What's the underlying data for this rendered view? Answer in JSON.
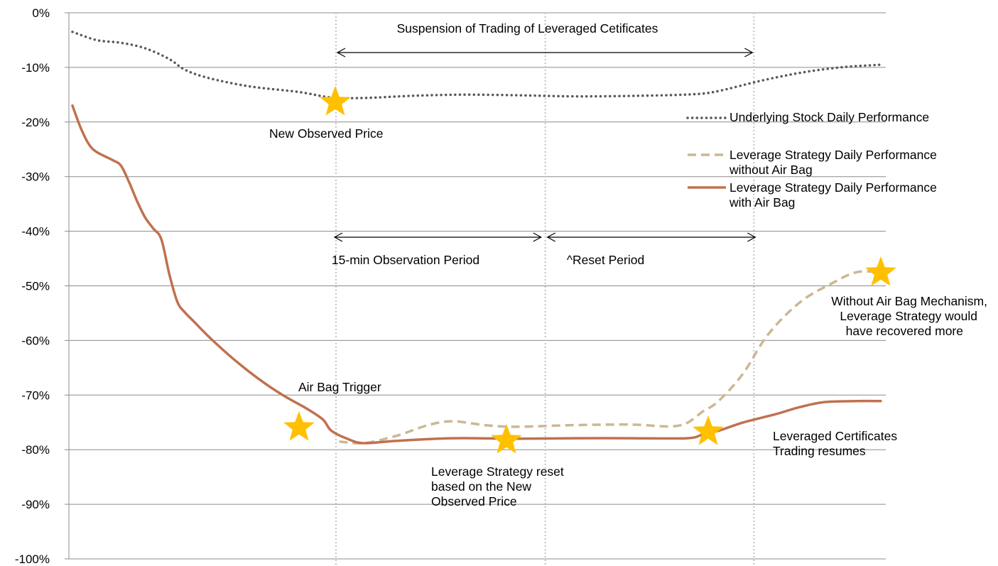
{
  "chart_data": {
    "type": "line",
    "title": "",
    "xlabel": "",
    "ylabel": "",
    "ylim": [
      -100,
      0
    ],
    "ytick_labels": [
      "0%",
      "-10%",
      "-20%",
      "-30%",
      "-40%",
      "-50%",
      "-60%",
      "-70%",
      "-80%",
      "-90%",
      "-100%"
    ],
    "grid": "horizontal",
    "legend_position": "right",
    "series": [
      {
        "name": "Underlying Stock Daily Performance",
        "style": "dotted",
        "color": "#595959",
        "points": [
          [
            0,
            -3.5
          ],
          [
            3,
            -5
          ],
          [
            6,
            -5.5
          ],
          [
            9,
            -6.5
          ],
          [
            12,
            -8.5
          ],
          [
            14,
            -10.5
          ],
          [
            17,
            -12
          ],
          [
            22,
            -13.5
          ],
          [
            28,
            -14.5
          ],
          [
            32,
            -15.5
          ],
          [
            36,
            -15.6
          ],
          [
            42,
            -15.2
          ],
          [
            48,
            -15
          ],
          [
            55,
            -15.1
          ],
          [
            62,
            -15.3
          ],
          [
            70,
            -15.2
          ],
          [
            77,
            -14.9
          ],
          [
            80,
            -14.3
          ],
          [
            85,
            -12.5
          ],
          [
            90,
            -11
          ],
          [
            95,
            -10
          ],
          [
            100,
            -9.5
          ]
        ]
      },
      {
        "name": "Leverage Strategy Daily Performance without Air Bag",
        "style": "dashed",
        "color": "#cbb893",
        "points": [
          [
            33,
            -78.5
          ],
          [
            36,
            -78.8
          ],
          [
            40,
            -77.5
          ],
          [
            44,
            -75.5
          ],
          [
            47,
            -74.8
          ],
          [
            51,
            -75.5
          ],
          [
            55,
            -75.8
          ],
          [
            62,
            -75.5
          ],
          [
            69,
            -75.4
          ],
          [
            75,
            -75.6
          ],
          [
            78,
            -73
          ],
          [
            80,
            -71
          ],
          [
            83,
            -66
          ],
          [
            86,
            -59
          ],
          [
            90,
            -53
          ],
          [
            94,
            -49.5
          ],
          [
            97,
            -47.5
          ],
          [
            100,
            -47.5
          ]
        ]
      },
      {
        "name": "Leverage Strategy Daily Performance with Air Bag",
        "style": "solid",
        "color": "#c0714f",
        "points": [
          [
            0,
            -17
          ],
          [
            1,
            -21
          ],
          [
            2,
            -24
          ],
          [
            3,
            -25.5
          ],
          [
            5,
            -27
          ],
          [
            6,
            -28
          ],
          [
            7,
            -31
          ],
          [
            8,
            -34.5
          ],
          [
            9,
            -37.5
          ],
          [
            10,
            -39.5
          ],
          [
            11,
            -41.5
          ],
          [
            12,
            -48
          ],
          [
            13,
            -53
          ],
          [
            14,
            -55
          ],
          [
            15,
            -56.5
          ],
          [
            17,
            -59.5
          ],
          [
            20,
            -63.5
          ],
          [
            23,
            -67
          ],
          [
            26,
            -70
          ],
          [
            29,
            -72.5
          ],
          [
            31,
            -74.5
          ],
          [
            32,
            -76.5
          ],
          [
            34,
            -78
          ],
          [
            36,
            -78.8
          ],
          [
            40,
            -78.4
          ],
          [
            47,
            -77.9
          ],
          [
            55,
            -78
          ],
          [
            62,
            -77.9
          ],
          [
            69,
            -77.9
          ],
          [
            76,
            -77.9
          ],
          [
            78,
            -77.2
          ],
          [
            80,
            -76.5
          ],
          [
            83,
            -75
          ],
          [
            87,
            -73.5
          ],
          [
            90,
            -72.2
          ],
          [
            93,
            -71.3
          ],
          [
            97,
            -71.1
          ],
          [
            100,
            -71.1
          ]
        ]
      }
    ],
    "markers": [
      {
        "label": "Air Bag Trigger",
        "x": 33,
        "y": -76
      },
      {
        "label": "New Observed Price",
        "x": 37.5,
        "y": -16
      },
      {
        "label": "Leverage Strategy reset based on the New Observed Price",
        "x": 59,
        "y": -78.5
      },
      {
        "label": "Leveraged Certificates Trading resumes",
        "x": 84.5,
        "y": -77
      },
      {
        "label": "Without Air Bag Mechanism, Leverage Strategy would have recovered more",
        "x": 100,
        "y": -47.5
      }
    ],
    "event_lines_x": [
      32.6,
      58.5,
      84.3
    ]
  },
  "star_color": "#ffc000",
  "annotations": {
    "suspension": "Suspension of Trading of Leveraged Cetificates",
    "observation": "15-min Observation Period",
    "reset": "^Reset Period",
    "new_observed_price": "New Observed Price",
    "air_bag_trigger": "Air Bag Trigger",
    "reset_line1": "Leverage Strategy reset",
    "reset_line2": "based on the New",
    "reset_line3": "Observed Price",
    "resume_line1": "Leveraged Certificates",
    "resume_line2": "Trading resumes",
    "without_line1": "Without Air Bag Mechanism,",
    "without_line2": "Leverage Strategy would",
    "without_line3": "have recovered more"
  },
  "legend": {
    "underlying": "Underlying Stock Daily Performance",
    "without_line1": "Leverage Strategy Daily Performance",
    "without_line2": "without Air Bag",
    "with_line1": "Leverage Strategy Daily Performance",
    "with_line2": "with Air Bag"
  }
}
